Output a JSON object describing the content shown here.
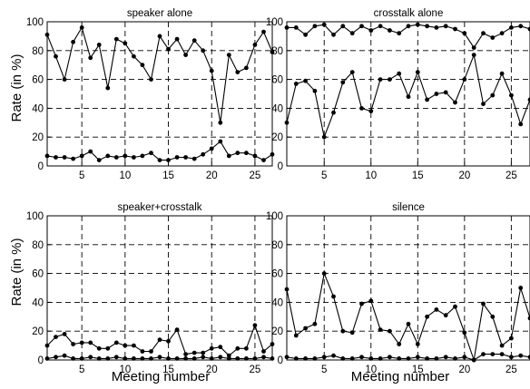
{
  "figure": {
    "ylabel": "Rate (in %)",
    "xlabel": "Meeting number"
  },
  "chart_data": [
    {
      "type": "line",
      "title": "speaker alone",
      "xlabel": "",
      "ylabel": "Rate (in %)",
      "x": [
        1,
        2,
        3,
        4,
        5,
        6,
        7,
        8,
        9,
        10,
        11,
        12,
        13,
        14,
        15,
        16,
        17,
        18,
        19,
        20,
        21,
        22,
        23,
        24,
        25,
        26,
        27
      ],
      "xlim": [
        1,
        27
      ],
      "ylim": [
        0,
        100
      ],
      "xticks": [
        5,
        10,
        15,
        20,
        25
      ],
      "yticks": [
        0,
        20,
        40,
        60,
        80,
        100
      ],
      "grid": true,
      "series": [
        {
          "values": [
            91,
            76,
            60,
            86,
            96,
            75,
            84,
            54,
            88,
            85,
            76,
            70,
            60,
            90,
            81,
            88,
            77,
            87,
            80,
            66,
            30,
            77,
            65,
            68,
            84,
            93,
            79
          ]
        },
        {
          "values": [
            7,
            6,
            6,
            5,
            7,
            10,
            4,
            7,
            6,
            7,
            6,
            7,
            9,
            4,
            4,
            6,
            6,
            5,
            8,
            12,
            17,
            7,
            9,
            9,
            7,
            4,
            8
          ]
        }
      ]
    },
    {
      "type": "line",
      "title": "crosstalk alone",
      "xlabel": "",
      "ylabel": "",
      "x": [
        1,
        2,
        3,
        4,
        5,
        6,
        7,
        8,
        9,
        10,
        11,
        12,
        13,
        14,
        15,
        16,
        17,
        18,
        19,
        20,
        21,
        22,
        23,
        24,
        25,
        26,
        27
      ],
      "xlim": [
        1,
        27
      ],
      "ylim": [
        0,
        100
      ],
      "xticks": [
        5,
        10,
        15,
        20,
        25
      ],
      "yticks": [
        0,
        20,
        40,
        60,
        80,
        100
      ],
      "grid": true,
      "series": [
        {
          "values": [
            96,
            96,
            91,
            97,
            98,
            91,
            97,
            92,
            97,
            94,
            97,
            94,
            92,
            97,
            98,
            97,
            96,
            97,
            95,
            92,
            82,
            92,
            89,
            92,
            96,
            97,
            95
          ]
        },
        {
          "values": [
            30,
            57,
            59,
            52,
            20,
            37,
            58,
            65,
            40,
            38,
            60,
            60,
            64,
            48,
            65,
            46,
            50,
            51,
            44,
            60,
            77,
            43,
            49,
            64,
            49,
            29,
            46
          ]
        }
      ]
    },
    {
      "type": "line",
      "title": "speaker+crosstalk",
      "xlabel": "Meeting number",
      "ylabel": "Rate (in %)",
      "x": [
        1,
        2,
        3,
        4,
        5,
        6,
        7,
        8,
        9,
        10,
        11,
        12,
        13,
        14,
        15,
        16,
        17,
        18,
        19,
        20,
        21,
        22,
        23,
        24,
        25,
        26,
        27
      ],
      "xlim": [
        1,
        27
      ],
      "ylim": [
        0,
        100
      ],
      "xticks": [
        5,
        10,
        15,
        20,
        25
      ],
      "yticks": [
        0,
        20,
        40,
        60,
        80,
        100
      ],
      "grid": true,
      "series": [
        {
          "values": [
            10,
            16,
            18,
            11,
            12,
            12,
            8,
            8,
            12,
            10,
            10,
            6,
            6,
            14,
            13,
            21,
            4,
            5,
            5,
            8,
            9,
            3,
            8,
            8,
            24,
            6,
            11
          ]
        },
        {
          "values": [
            1,
            2,
            3,
            1,
            1,
            2,
            1,
            1,
            2,
            1,
            1,
            1,
            1,
            2,
            1,
            1,
            1,
            1,
            2,
            1,
            2,
            1,
            1,
            1,
            1,
            2,
            1
          ]
        }
      ]
    },
    {
      "type": "line",
      "title": "silence",
      "xlabel": "Meeting number",
      "ylabel": "",
      "x": [
        1,
        2,
        3,
        4,
        5,
        6,
        7,
        8,
        9,
        10,
        11,
        12,
        13,
        14,
        15,
        16,
        17,
        18,
        19,
        20,
        21,
        22,
        23,
        24,
        25,
        26,
        27
      ],
      "xlim": [
        1,
        27
      ],
      "ylim": [
        0,
        100
      ],
      "xticks": [
        5,
        10,
        15,
        20,
        25
      ],
      "yticks": [
        0,
        20,
        40,
        60,
        80,
        100
      ],
      "grid": true,
      "series": [
        {
          "values": [
            49,
            17,
            22,
            25,
            60,
            44,
            20,
            19,
            39,
            41,
            21,
            20,
            11,
            25,
            11,
            30,
            35,
            31,
            37,
            19,
            0,
            39,
            30,
            10,
            15,
            50,
            29
          ]
        },
        {
          "values": [
            2,
            1,
            1,
            1,
            2,
            3,
            1,
            1,
            2,
            1,
            1,
            2,
            1,
            1,
            2,
            1,
            1,
            2,
            1,
            2,
            0,
            4,
            4,
            4,
            2,
            3,
            2
          ]
        }
      ]
    }
  ]
}
